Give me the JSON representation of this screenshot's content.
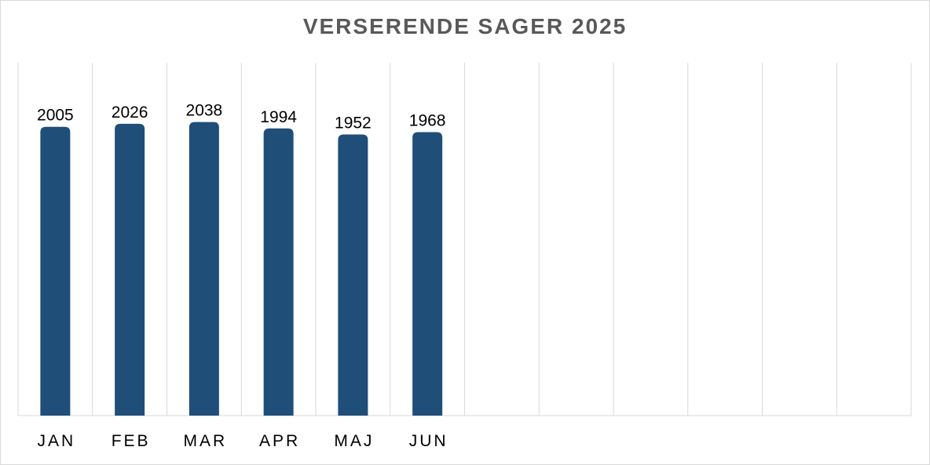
{
  "chart_data": {
    "type": "bar",
    "title": "VERSERENDE SAGER 2025",
    "slots": 12,
    "categories": [
      "JAN",
      "FEB",
      "MAR",
      "APR",
      "MAJ",
      "JUN"
    ],
    "values": [
      2005,
      2026,
      2038,
      1994,
      1952,
      1968
    ],
    "ylim": [
      0,
      2450
    ],
    "grid": "vertical",
    "legend": "none",
    "colors": {
      "bar": "#1f4e79",
      "grid": "#d9d9d9",
      "title": "#595959"
    }
  }
}
